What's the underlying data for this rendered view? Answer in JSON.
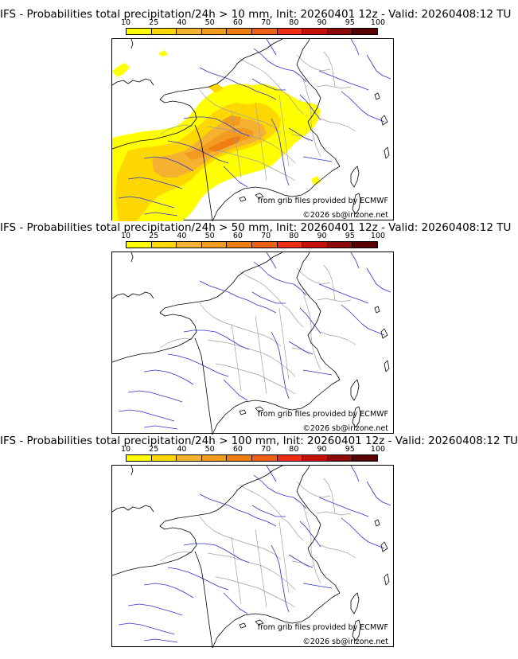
{
  "panels": [
    {
      "title": "IFS - Probabilities total precipitation/24h > 10 mm, Init: 20260401 12z - Valid: 20260408:12 TU",
      "credit_source": "from grib files provided by ECMWF",
      "credit_copyright": "©2026 sb@irizone.net",
      "shaded": true
    },
    {
      "title": "IFS - Probabilities total precipitation/24h > 50 mm, Init: 20260401 12z - Valid: 20260408:12 TU",
      "credit_source": "from grib files provided by ECMWF",
      "credit_copyright": "©2026 sb@irizone.net",
      "shaded": false
    },
    {
      "title": "IFS - Probabilities total precipitation/24h > 100 mm, Init: 20260401 12z - Valid: 20260408:12 TU",
      "credit_source": "from grib files provided by ECMWF",
      "credit_copyright": "©2026 sb@irizone.net",
      "shaded": false
    }
  ],
  "scale": {
    "labels": [
      "10",
      "25",
      "40",
      "50",
      "60",
      "70",
      "80",
      "90",
      "95",
      "100"
    ],
    "colors": [
      "#ffff00",
      "#ffd700",
      "#f5b230",
      "#f29b1e",
      "#f07d0f",
      "#f06014",
      "#ee2d14",
      "#c8100a",
      "#8c0a0a",
      "#5a0000"
    ]
  },
  "map_colors": {
    "coast": "#000000",
    "borders": "#a0a0a0",
    "rivers": "#3333cc"
  }
}
